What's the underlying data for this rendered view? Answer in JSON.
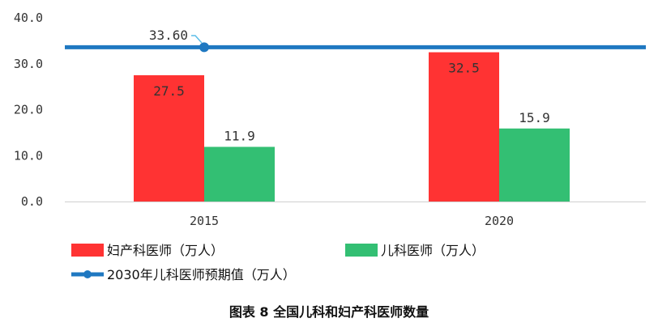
{
  "chart_data": {
    "type": "bar",
    "categories": [
      "2015",
      "2020"
    ],
    "series": [
      {
        "name": "妇产科医师（万人）",
        "values": [
          27.5,
          32.5
        ],
        "color": "#ff3333"
      },
      {
        "name": "儿科医师（万人）",
        "values": [
          11.9,
          15.9
        ],
        "color": "#33bf73"
      }
    ],
    "reference_line": {
      "name": "2030年儿科医师预期值（万人）",
      "value": 33.6,
      "label": "33.60",
      "color": "#1f78c1"
    },
    "ylim": [
      0,
      40
    ],
    "yticks": [
      "0.0",
      "10.0",
      "20.0",
      "30.0",
      "40.0"
    ],
    "data_labels": [
      [
        "27.5",
        "32.5"
      ],
      [
        "11.9",
        "15.9"
      ]
    ],
    "grid": false,
    "legend_position": "bottom-left"
  },
  "caption": "图表 8 全国儿科和妇产科医师数量"
}
